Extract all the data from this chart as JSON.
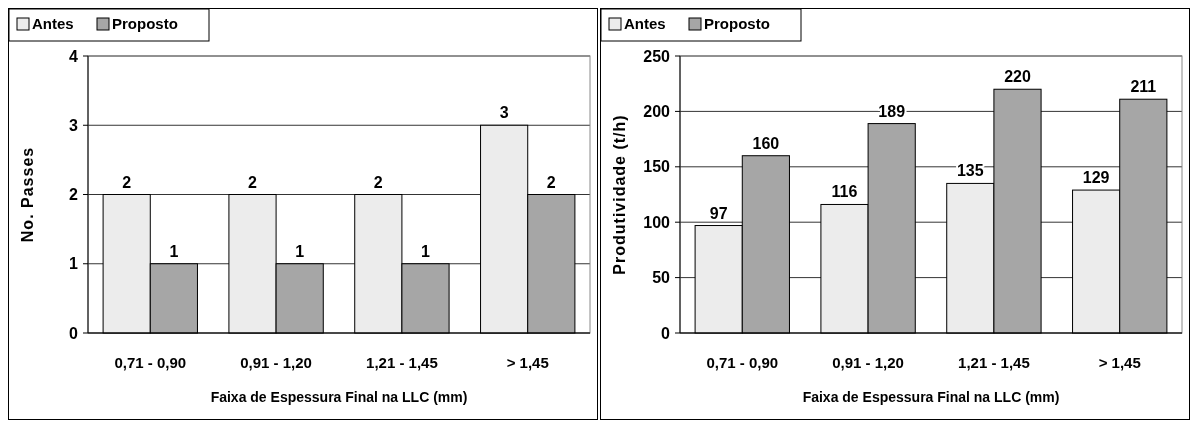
{
  "chart_data": [
    {
      "type": "bar",
      "categories": [
        "0,71 - 0,90",
        "0,91 - 1,20",
        "1,21 - 1,45",
        "> 1,45"
      ],
      "xlabel": "Faixa de Espessura Final na LLC (mm)",
      "ylabel": "No. Passes",
      "ylim": [
        0,
        4
      ],
      "yticks": [
        0,
        1,
        2,
        3,
        4
      ],
      "grid": "y",
      "legend": "top left",
      "data_labels": true,
      "series": [
        {
          "name": "Antes",
          "color": "#ececec",
          "values": [
            2,
            2,
            2,
            3
          ]
        },
        {
          "name": "Proposto",
          "color": "#a6a6a6",
          "values": [
            1,
            1,
            1,
            2
          ]
        }
      ]
    },
    {
      "type": "bar",
      "categories": [
        "0,71 - 0,90",
        "0,91 - 1,20",
        "1,21 - 1,45",
        "> 1,45"
      ],
      "xlabel": "Faixa de Espessura Final na LLC (mm)",
      "ylabel": "Produtividade (t/h)",
      "ylim": [
        0,
        250
      ],
      "yticks": [
        0,
        50,
        100,
        150,
        200,
        250
      ],
      "grid": "y",
      "legend": "top left",
      "data_labels": true,
      "series": [
        {
          "name": "Antes",
          "color": "#ececec",
          "values": [
            97,
            116,
            135,
            129
          ]
        },
        {
          "name": "Proposto",
          "color": "#a6a6a6",
          "values": [
            160,
            189,
            220,
            211
          ]
        }
      ]
    }
  ]
}
